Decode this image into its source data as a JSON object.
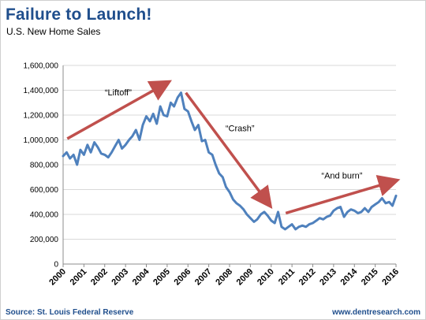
{
  "header": {
    "title": "Failure to Launch!",
    "subtitle": "U.S. New Home Sales"
  },
  "footer": {
    "source": "Source: St. Louis Federal Reserve",
    "site": "www.dentresearch.com"
  },
  "colors": {
    "series": "#4f81bd",
    "arrow": "#c0504d",
    "title": "#1f4e8c"
  },
  "chart_data": {
    "type": "line",
    "title": "Failure to Launch!",
    "subtitle": "U.S. New Home Sales",
    "xlim": [
      2000,
      2016
    ],
    "ylim": [
      0,
      1600000
    ],
    "grid": true,
    "y_ticks": [
      "0",
      "200,000",
      "400,000",
      "600,000",
      "800,000",
      "1,000,000",
      "1,200,000",
      "1,400,000",
      "1,600,000"
    ],
    "x_ticks": [
      "2000",
      "2001",
      "2002",
      "2003",
      "2004",
      "2005",
      "2006",
      "2007",
      "2008",
      "2009",
      "2010",
      "2011",
      "2012",
      "2013",
      "2014",
      "2015",
      "2016"
    ],
    "series": [
      {
        "x": [
          2000.0,
          2000.17,
          2000.33,
          2000.5,
          2000.67,
          2000.83,
          2001.0,
          2001.17,
          2001.33,
          2001.5,
          2001.67,
          2001.83,
          2002.0,
          2002.17,
          2002.33,
          2002.5,
          2002.67,
          2002.83,
          2003.0,
          2003.17,
          2003.33,
          2003.5,
          2003.67,
          2003.83,
          2004.0,
          2004.17,
          2004.33,
          2004.5,
          2004.67,
          2004.83,
          2005.0,
          2005.17,
          2005.33,
          2005.5,
          2005.67,
          2005.83,
          2006.0,
          2006.17,
          2006.33,
          2006.5,
          2006.67,
          2006.83,
          2007.0,
          2007.17,
          2007.33,
          2007.5,
          2007.67,
          2007.83,
          2008.0,
          2008.17,
          2008.33,
          2008.5,
          2008.67,
          2008.83,
          2009.0,
          2009.17,
          2009.33,
          2009.5,
          2009.67,
          2009.83,
          2010.0,
          2010.17,
          2010.33,
          2010.5,
          2010.67,
          2010.83,
          2011.0,
          2011.17,
          2011.33,
          2011.5,
          2011.67,
          2011.83,
          2012.0,
          2012.17,
          2012.33,
          2012.5,
          2012.67,
          2012.83,
          2013.0,
          2013.17,
          2013.33,
          2013.5,
          2013.67,
          2013.83,
          2014.0,
          2014.17,
          2014.33,
          2014.5,
          2014.67,
          2014.83,
          2015.0,
          2015.17,
          2015.33,
          2015.5,
          2015.67,
          2015.83,
          2016.0
        ],
        "values": [
          870000,
          900000,
          850000,
          880000,
          800000,
          920000,
          880000,
          960000,
          900000,
          980000,
          940000,
          890000,
          880000,
          860000,
          900000,
          950000,
          1000000,
          930000,
          960000,
          1000000,
          1030000,
          1080000,
          1000000,
          1120000,
          1190000,
          1150000,
          1210000,
          1130000,
          1270000,
          1200000,
          1190000,
          1300000,
          1270000,
          1340000,
          1380000,
          1250000,
          1230000,
          1150000,
          1080000,
          1120000,
          990000,
          1000000,
          900000,
          880000,
          800000,
          730000,
          700000,
          620000,
          580000,
          520000,
          490000,
          470000,
          440000,
          400000,
          370000,
          340000,
          360000,
          400000,
          420000,
          390000,
          350000,
          330000,
          420000,
          300000,
          280000,
          300000,
          320000,
          280000,
          300000,
          310000,
          300000,
          320000,
          330000,
          350000,
          370000,
          360000,
          380000,
          390000,
          430000,
          450000,
          460000,
          380000,
          420000,
          440000,
          430000,
          410000,
          420000,
          450000,
          420000,
          460000,
          480000,
          500000,
          530000,
          490000,
          500000,
          470000,
          550000
        ]
      }
    ],
    "annotations": [
      {
        "text": "“Liftoff”",
        "x": 2002.65,
        "y": 1360000
      },
      {
        "text": "“Crash”",
        "x": 2008.5,
        "y": 1070000
      },
      {
        "text": "“And burn”",
        "x": 2013.4,
        "y": 690000
      }
    ],
    "arrows": [
      {
        "from": [
          2000.2,
          1010000
        ],
        "to": [
          2005.0,
          1460000
        ]
      },
      {
        "from": [
          2005.9,
          1380000
        ],
        "to": [
          2009.9,
          480000
        ]
      },
      {
        "from": [
          2010.7,
          410000
        ],
        "to": [
          2015.95,
          670000
        ]
      }
    ]
  }
}
